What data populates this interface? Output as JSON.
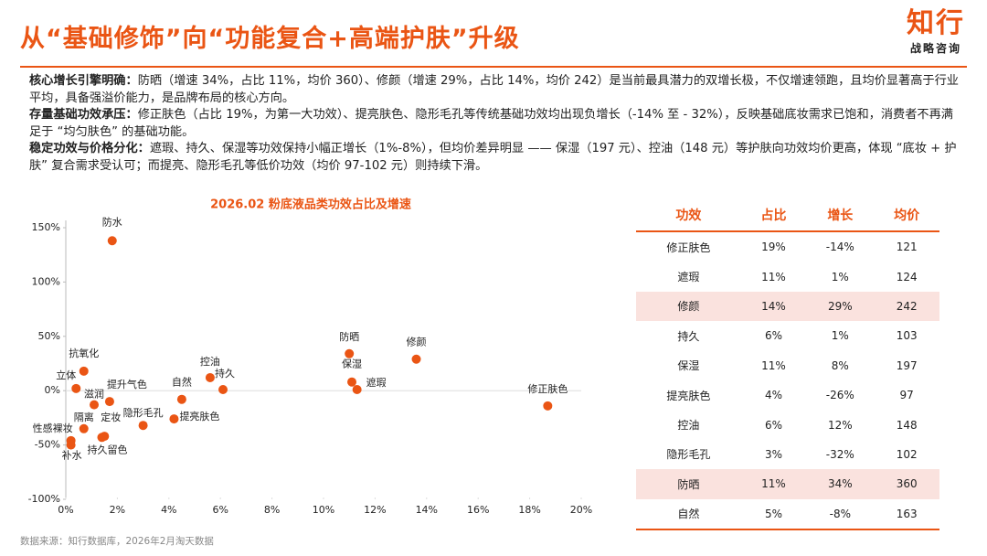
{
  "header": {
    "title": "从“基础修饰”向“功能复合+高端护肤”升级",
    "logo": "知行",
    "logo_sub": "战略咨询"
  },
  "paragraphs": [
    {
      "lead": "核心增长引擎明确：",
      "body": "防晒（增速 34%，占比 11%，均价 360）、修颜（增速 29%，占比 14%，均价 242）是当前最具潜力的双增长极，不仅增速领跑，且均价显著高于行业平均，具备强溢价能力，是品牌布局的核心方向。"
    },
    {
      "lead": "存量基础功效承压：",
      "body": "修正肤色（占比 19%，为第一大功效）、提亮肤色、隐形毛孔等传统基础功效均出现负增长（-14% 至 - 32%），反映基础底妆需求已饱和，消费者不再满足于 “均匀肤色” 的基础功能。"
    },
    {
      "lead": "稳定功效与价格分化：",
      "body": "遮瑕、持久、保湿等功效保持小幅正增长（1%-8%），但均价差异明显 —— 保湿（197 元）、控油（148 元）等护肤向功效均价更高，体现 “底妆 + 护肤” 复合需求受认可；而提亮、隐形毛孔等低价功效（均价 97-102 元）则持续下滑。"
    }
  ],
  "chart_data": {
    "type": "scatter",
    "title": "2026.02 粉底液品类功效占比及增速",
    "color": "#ea5514",
    "point_labels": [
      "防水",
      "防晒",
      "修颜",
      "控油",
      "持久",
      "保湿",
      "遮瑕",
      "修正肤色",
      "自然",
      "提亮肤色",
      "隐形毛孔",
      "抗氧化",
      "立体",
      "提升气色",
      "滋润",
      "隔离",
      "定妆",
      "持久留色",
      "性感裸妆",
      "补水"
    ],
    "x": [
      1.8,
      11,
      13.6,
      5.6,
      6.1,
      11.1,
      11.3,
      18.7,
      4.5,
      4.2,
      3.0,
      0.7,
      0.4,
      1.7,
      1.1,
      0.7,
      1.5,
      1.4,
      0.2,
      0.2
    ],
    "values": [
      138,
      34,
      29,
      12,
      1,
      8,
      1,
      -14,
      -8,
      -26,
      -32,
      18,
      2,
      -10,
      -13,
      -35,
      -42,
      -43,
      -46,
      -50
    ],
    "xlim": [
      0,
      20
    ],
    "xticks": [
      {
        "value": 0,
        "label": "0%"
      },
      {
        "value": 2,
        "label": "2%"
      },
      {
        "value": 4,
        "label": "4%"
      },
      {
        "value": 6,
        "label": "6%"
      },
      {
        "value": 8,
        "label": "8%"
      },
      {
        "value": 10,
        "label": "10%"
      },
      {
        "value": 12,
        "label": "12%"
      },
      {
        "value": 14,
        "label": "14%"
      },
      {
        "value": 16,
        "label": "16%"
      },
      {
        "value": 18,
        "label": "18%"
      },
      {
        "value": 20,
        "label": "20%"
      }
    ],
    "ylim": [
      -100,
      150
    ],
    "yticks": [
      {
        "value": -100,
        "label": "-100%"
      },
      {
        "value": -50,
        "label": "-50%"
      },
      {
        "value": 0,
        "label": "0%"
      },
      {
        "value": 50,
        "label": "50%"
      },
      {
        "value": 100,
        "label": "100%"
      },
      {
        "value": 150,
        "label": "150%"
      }
    ]
  },
  "table": {
    "header": [
      "功效",
      "占比",
      "增长",
      "均价"
    ],
    "rows": [
      [
        "修正肤色",
        "19%",
        "-14%",
        "121"
      ],
      [
        "遮瑕",
        "11%",
        "1%",
        "124"
      ],
      [
        "修颜",
        "14%",
        "29%",
        "242"
      ],
      [
        "持久",
        "6%",
        "1%",
        "103"
      ],
      [
        "保湿",
        "11%",
        "8%",
        "197"
      ],
      [
        "提亮肤色",
        "4%",
        "-26%",
        "97"
      ],
      [
        "控油",
        "6%",
        "12%",
        "148"
      ],
      [
        "隐形毛孔",
        "3%",
        "-32%",
        "102"
      ],
      [
        "防晒",
        "11%",
        "34%",
        "360"
      ],
      [
        "自然",
        "5%",
        "-8%",
        "163"
      ]
    ],
    "highlight_rows": [
      2,
      8
    ]
  },
  "source": "数据来源：知行数据库，2026年2月淘天数据"
}
